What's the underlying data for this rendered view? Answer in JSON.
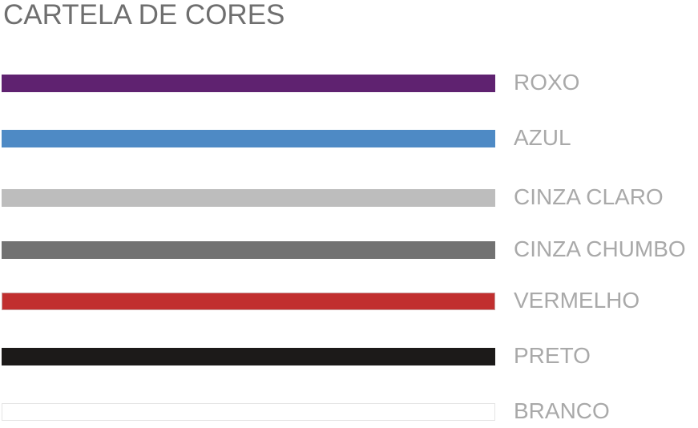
{
  "title": "CARTELA DE CORES",
  "colors": [
    {
      "label": "ROXO",
      "hex": "#5f2270",
      "border": "#5f2270"
    },
    {
      "label": "AZUL",
      "hex": "#4e8ac5",
      "border": "#4e8ac5"
    },
    {
      "label": "CINZA CLARO",
      "hex": "#bdbdbd",
      "border": "#bdbdbd"
    },
    {
      "label": "CINZA CHUMBO",
      "hex": "#727272",
      "border": "#727272"
    },
    {
      "label": "VERMELHO",
      "hex": "#c12f2f",
      "border": "#c9a0a0"
    },
    {
      "label": "PRETO",
      "hex": "#1c1a19",
      "border": "#1c1a19"
    },
    {
      "label": "BRANCO",
      "hex": "#ffffff",
      "border": "#e4e4e4"
    }
  ]
}
